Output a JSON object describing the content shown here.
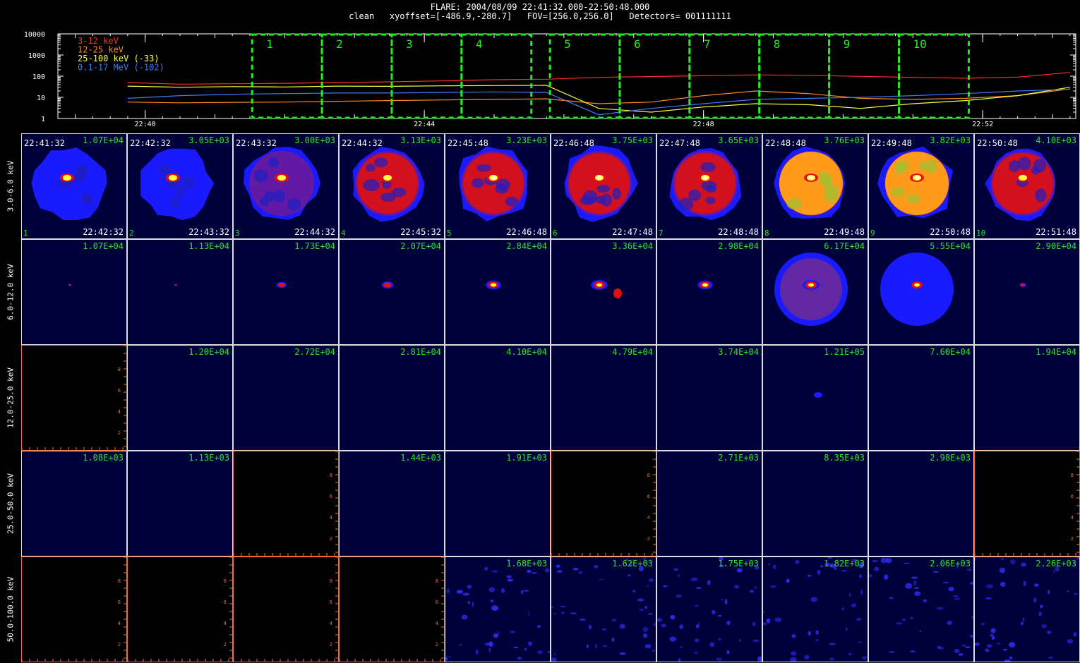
{
  "header": {
    "line1": "FLARE: 2004/08/09 22:41:32.000-22:50:48.000",
    "line2": "clean   xyoffset=[-486.9,-280.7]   FOV=[256.0,256.0]   Detectors= 001111111"
  },
  "lightcurve": {
    "y_ticks": [
      "10000",
      "1000",
      "100",
      "10",
      "1"
    ],
    "x_ticks": [
      "22:40",
      "22:44",
      "22:48",
      "22:52"
    ],
    "legend": [
      {
        "label": "3-12 keV",
        "color": "#ff2a2a"
      },
      {
        "label": "12-25 keV",
        "color": "#ff8a2a"
      },
      {
        "label": "25-100 keV (-33)",
        "color": "#ffff40"
      },
      {
        "label": "0.1-17 MeV (-102)",
        "color": "#3a7aff"
      }
    ],
    "interval_labels": [
      "1",
      "2",
      "3",
      "4",
      "5",
      "6",
      "7",
      "8",
      "9",
      "10"
    ]
  },
  "chart_data": {
    "type": "line",
    "yscale": "log",
    "ylim": [
      1,
      10000
    ],
    "x_axis_tick_labels": [
      "22:40",
      "22:44",
      "22:48",
      "22:52"
    ],
    "x": [
      "22:39:45",
      "22:40:30",
      "22:41:15",
      "22:42:00",
      "22:42:45",
      "22:43:30",
      "22:44:15",
      "22:45:00",
      "22:45:45",
      "22:46:30",
      "22:47:15",
      "22:48:00",
      "22:48:45",
      "22:49:30",
      "22:50:15",
      "22:51:00",
      "22:51:45",
      "22:52:30",
      "22:53:15"
    ],
    "series": [
      {
        "name": "3-12 keV",
        "color": "#ff2a2a",
        "values": [
          50,
          42,
          44,
          46,
          50,
          54,
          60,
          68,
          72,
          88,
          96,
          105,
          115,
          110,
          98,
          88,
          80,
          90,
          150
        ]
      },
      {
        "name": "12-25 keV",
        "color": "#ff8a2a",
        "values": [
          6,
          5.5,
          5.8,
          6,
          6.5,
          7,
          7.5,
          8,
          8.5,
          5,
          6,
          12,
          20,
          15,
          9,
          8,
          9,
          12,
          25
        ]
      },
      {
        "name": "25-100 keV (-33)",
        "color": "#ffff40",
        "values": [
          34,
          30,
          32,
          31,
          34,
          33,
          35,
          36,
          37,
          3,
          2,
          3.5,
          5,
          4.5,
          3,
          5,
          7,
          12,
          30
        ]
      },
      {
        "name": "0.1-17 MeV (-102)",
        "color": "#3a7aff",
        "values": [
          9,
          12,
          14,
          15,
          16,
          16,
          17,
          18,
          17,
          1.5,
          3,
          5,
          8,
          9,
          10,
          12,
          15,
          20,
          24
        ]
      }
    ],
    "intervals": [
      {
        "label": "1",
        "start": "22:41:32",
        "end": "22:42:32"
      },
      {
        "label": "2",
        "start": "22:42:32",
        "end": "22:43:32"
      },
      {
        "label": "3",
        "start": "22:43:32",
        "end": "22:44:32"
      },
      {
        "label": "4",
        "start": "22:44:32",
        "end": "22:45:32"
      },
      {
        "label": "5",
        "start": "22:45:48",
        "end": "22:46:48"
      },
      {
        "label": "6",
        "start": "22:46:48",
        "end": "22:47:48"
      },
      {
        "label": "7",
        "start": "22:47:48",
        "end": "22:48:48"
      },
      {
        "label": "8",
        "start": "22:48:48",
        "end": "22:49:48"
      },
      {
        "label": "9",
        "start": "22:49:48",
        "end": "22:50:48"
      },
      {
        "label": "10",
        "start": "22:50:48",
        "end": "22:51:48"
      }
    ]
  },
  "energy_bands": [
    "3.0-6.0 keV",
    "6.0-12.0 keV",
    "12.0-25.0 keV",
    "25.0-50.0 keV",
    "50.0-100.0 keV"
  ],
  "images": {
    "start_times": [
      "22:41:32",
      "22:42:32",
      "22:43:32",
      "22:44:32",
      "22:45:48",
      "22:46:48",
      "22:47:48",
      "22:48:48",
      "22:49:48",
      "22:50:48"
    ],
    "end_times": [
      "22:42:32",
      "22:43:32",
      "22:44:32",
      "22:45:32",
      "22:46:48",
      "22:47:48",
      "22:48:48",
      "22:49:48",
      "22:50:48",
      "22:51:48"
    ],
    "max_values": [
      [
        "1.07E+04",
        "3.05E+03",
        "3.00E+03",
        "3.13E+03",
        "3.23E+03",
        "3.75E+03",
        "3.65E+03",
        "3.76E+03",
        "3.82E+03",
        "4.10E+03"
      ],
      [
        "1.07E+04",
        "1.13E+04",
        "1.73E+04",
        "2.07E+04",
        "2.84E+04",
        "3.36E+04",
        "2.98E+04",
        "6.17E+04",
        "5.55E+04",
        "2.90E+04"
      ],
      [
        "",
        "1.20E+04",
        "2.72E+04",
        "2.81E+04",
        "4.10E+04",
        "4.79E+04",
        "3.74E+04",
        "1.21E+05",
        "7.60E+04",
        "1.94E+04"
      ],
      [
        "1.08E+03",
        "1.13E+03",
        "",
        "1.44E+03",
        "1.91E+03",
        "",
        "2.71E+03",
        "8.35E+03",
        "2.98E+03",
        ""
      ],
      [
        "",
        "",
        "",
        "",
        "1.68E+03",
        "1.62E+03",
        "1.75E+03",
        "1.82E+03",
        "2.06E+03",
        "2.26E+03"
      ]
    ],
    "available": [
      [
        1,
        1,
        1,
        1,
        1,
        1,
        1,
        1,
        1,
        1
      ],
      [
        1,
        1,
        1,
        1,
        1,
        1,
        1,
        1,
        1,
        1
      ],
      [
        0,
        1,
        1,
        1,
        1,
        1,
        1,
        1,
        1,
        1
      ],
      [
        1,
        1,
        0,
        1,
        1,
        0,
        1,
        1,
        1,
        0
      ],
      [
        0,
        0,
        0,
        0,
        1,
        1,
        1,
        1,
        1,
        1
      ]
    ],
    "blank_axis_ticks": [
      "2",
      "4",
      "6",
      "8"
    ],
    "colors": {
      "background": "#00003a",
      "disk_blue": "#1a1aff",
      "red": "#e01010",
      "orange": "#ff9a1a",
      "yellow": "#ffff40",
      "white": "#ffffff",
      "green_text": "#29e629",
      "blank_axis": "#ff6a2a"
    }
  }
}
